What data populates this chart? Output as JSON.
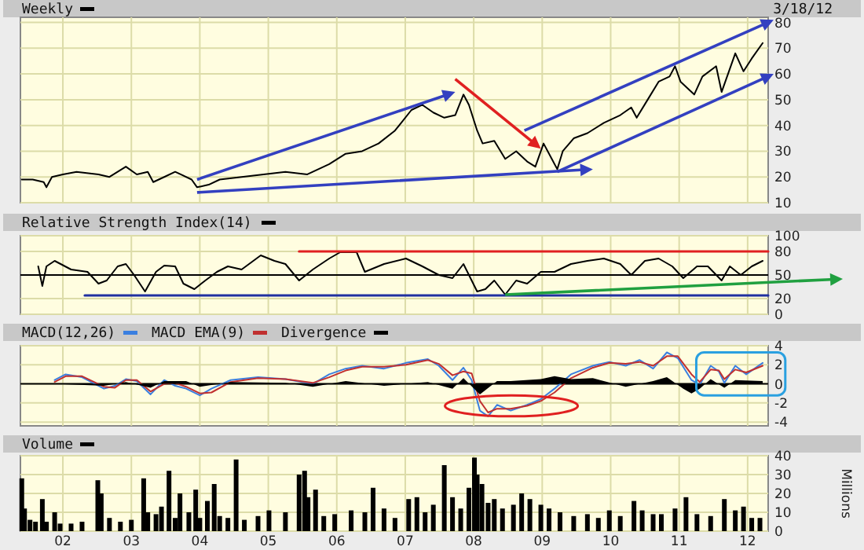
{
  "chart_data": [
    {
      "type": "line",
      "legend": "top",
      "grid": true,
      "tick_labels": "y",
      "annotations": [
        "3/18/12"
      ],
      "xlim": [
        2001.38,
        2012.3
      ],
      "xticks": [
        {
          "value": 2002,
          "label": null
        },
        {
          "value": 2003,
          "label": null
        },
        {
          "value": 2004,
          "label": null
        },
        {
          "value": 2005,
          "label": null
        },
        {
          "value": 2006,
          "label": null
        },
        {
          "value": 2007,
          "label": null
        },
        {
          "value": 2008,
          "label": null
        },
        {
          "value": 2009,
          "label": null
        },
        {
          "value": 2010,
          "label": null
        },
        {
          "value": 2011,
          "label": null
        },
        {
          "value": 2012,
          "label": null
        }
      ],
      "ylim": [
        10,
        82
      ],
      "yticks": [
        10,
        20,
        30,
        40,
        50,
        60,
        70,
        80
      ],
      "series": [
        {
          "name": "Weekly",
          "color": "#000000",
          "x": [
            2001.4,
            2001.56,
            2001.72,
            2001.76,
            2001.84,
            2002.0,
            2002.2,
            2002.52,
            2002.68,
            2002.92,
            2003.08,
            2003.24,
            2003.32,
            2003.48,
            2003.64,
            2003.72,
            2003.88,
            2003.96,
            2004.13,
            2004.29,
            2004.61,
            2004.93,
            2005.25,
            2005.57,
            2005.89,
            2006.13,
            2006.37,
            2006.61,
            2006.85,
            2007.09,
            2007.25,
            2007.41,
            2007.57,
            2007.73,
            2007.85,
            2007.93,
            2008.05,
            2008.13,
            2008.3,
            2008.46,
            2008.62,
            2008.78,
            2008.9,
            2009.02,
            2009.14,
            2009.22,
            2009.3,
            2009.46,
            2009.66,
            2009.9,
            2010.14,
            2010.3,
            2010.38,
            2010.54,
            2010.7,
            2010.86,
            2010.94,
            2011.02,
            2011.22,
            2011.34,
            2011.54,
            2011.62,
            2011.74,
            2011.82,
            2011.94,
            2012.06,
            2012.22
          ],
          "values": [
            19,
            19,
            18,
            16,
            20,
            21,
            22,
            21,
            20,
            24,
            21,
            22,
            18,
            20,
            22,
            21,
            19,
            16,
            17,
            19,
            20,
            21,
            22,
            21,
            25,
            29,
            30,
            33,
            38,
            46,
            48,
            45,
            43,
            44,
            52,
            48,
            38,
            33,
            34,
            27,
            30,
            26,
            24,
            33,
            27,
            23,
            30,
            35,
            37,
            41,
            44,
            47,
            43,
            50,
            57,
            59,
            63,
            57,
            52,
            59,
            63,
            53,
            62,
            68,
            61,
            66,
            72
          ]
        }
      ]
    },
    {
      "type": "line",
      "legend": "top",
      "grid": true,
      "tick_labels": "y",
      "xlim": [
        2001.38,
        2012.3
      ],
      "xticks": [
        {
          "value": 2002,
          "label": null
        },
        {
          "value": 2003,
          "label": null
        },
        {
          "value": 2004,
          "label": null
        },
        {
          "value": 2005,
          "label": null
        },
        {
          "value": 2006,
          "label": null
        },
        {
          "value": 2007,
          "label": null
        },
        {
          "value": 2008,
          "label": null
        },
        {
          "value": 2009,
          "label": null
        },
        {
          "value": 2010,
          "label": null
        },
        {
          "value": 2011,
          "label": null
        },
        {
          "value": 2012,
          "label": null
        }
      ],
      "ylim": [
        0,
        100
      ],
      "yticks": [
        0,
        20,
        50,
        80,
        100
      ],
      "ref_lines": [
        {
          "axis": "y",
          "value": 50,
          "color": "#000000"
        }
      ],
      "series": [
        {
          "name": "Relative Strength Index(14)",
          "color": "#000000",
          "x": [
            2001.64,
            2001.7,
            2001.76,
            2001.88,
            2002.12,
            2002.36,
            2002.52,
            2002.64,
            2002.8,
            2002.92,
            2003.04,
            2003.2,
            2003.36,
            2003.48,
            2003.64,
            2003.76,
            2003.92,
            2004.08,
            2004.25,
            2004.41,
            2004.61,
            2004.89,
            2005.09,
            2005.25,
            2005.45,
            2005.65,
            2005.89,
            2006.05,
            2006.29,
            2006.41,
            2006.69,
            2007.01,
            2007.25,
            2007.49,
            2007.69,
            2007.85,
            2008.05,
            2008.17,
            2008.3,
            2008.46,
            2008.62,
            2008.78,
            2008.98,
            2009.18,
            2009.42,
            2009.66,
            2009.9,
            2010.14,
            2010.3,
            2010.5,
            2010.7,
            2010.9,
            2011.06,
            2011.26,
            2011.42,
            2011.62,
            2011.74,
            2011.9,
            2012.06,
            2012.22
          ],
          "values": [
            61,
            36,
            61,
            68,
            57,
            54,
            39,
            43,
            61,
            64,
            50,
            29,
            54,
            62,
            61,
            39,
            32,
            43,
            54,
            61,
            57,
            75,
            68,
            64,
            43,
            57,
            71,
            79,
            79,
            54,
            64,
            71,
            61,
            50,
            46,
            64,
            29,
            32,
            43,
            25,
            43,
            39,
            54,
            54,
            64,
            68,
            71,
            64,
            50,
            68,
            71,
            61,
            46,
            61,
            61,
            43,
            61,
            50,
            61,
            68
          ]
        },
        {
          "color": "#e02020",
          "x": [
            2005.45,
            2012.3
          ],
          "values": [
            80,
            80
          ]
        },
        {
          "color": "#2030a0",
          "x": [
            2002.32,
            2012.3
          ],
          "values": [
            24,
            24
          ]
        }
      ]
    },
    {
      "type": "line",
      "legend": "top",
      "grid": true,
      "tick_labels": "y",
      "xlim": [
        2001.38,
        2012.3
      ],
      "xticks": [
        {
          "value": 2002,
          "label": null
        },
        {
          "value": 2003,
          "label": null
        },
        {
          "value": 2004,
          "label": null
        },
        {
          "value": 2005,
          "label": null
        },
        {
          "value": 2006,
          "label": null
        },
        {
          "value": 2007,
          "label": null
        },
        {
          "value": 2008,
          "label": null
        },
        {
          "value": 2009,
          "label": null
        },
        {
          "value": 2010,
          "label": null
        },
        {
          "value": 2011,
          "label": null
        },
        {
          "value": 2012,
          "label": null
        }
      ],
      "ylim": [
        -4.4,
        4
      ],
      "yticks": [
        -4,
        -2,
        0,
        2,
        4
      ],
      "ref_lines": [
        {
          "axis": "y",
          "value": 0,
          "color": "#000000"
        }
      ],
      "series": [
        {
          "name": "MACD(12,26)",
          "color": "#3a7fe0",
          "x": [
            2001.88,
            2002.04,
            2002.28,
            2002.6,
            2002.76,
            2002.92,
            2003.08,
            2003.28,
            2003.48,
            2003.64,
            2003.8,
            2004.0,
            2004.17,
            2004.45,
            2004.85,
            2005.25,
            2005.65,
            2005.89,
            2006.13,
            2006.37,
            2006.69,
            2007.01,
            2007.33,
            2007.49,
            2007.69,
            2007.85,
            2007.97,
            2008.09,
            2008.21,
            2008.34,
            2008.54,
            2008.78,
            2008.98,
            2009.18,
            2009.42,
            2009.74,
            2009.98,
            2010.22,
            2010.42,
            2010.62,
            2010.82,
            2010.98,
            2011.18,
            2011.3,
            2011.46,
            2011.58,
            2011.66,
            2011.82,
            2011.98,
            2012.22
          ],
          "values": [
            0.4,
            1,
            0.7,
            -0.5,
            -0.2,
            0.5,
            0.3,
            -1.1,
            0.4,
            -0.2,
            -0.5,
            -1.2,
            -0.5,
            0.4,
            0.7,
            0.5,
            0,
            1,
            1.6,
            1.9,
            1.6,
            2.2,
            2.6,
            1.9,
            0.4,
            1.7,
            0.4,
            -2.8,
            -3.4,
            -2.2,
            -2.8,
            -2.2,
            -1.6,
            -0.5,
            1,
            1.9,
            2.3,
            1.9,
            2.5,
            1.6,
            3.3,
            2.7,
            0.4,
            -0.1,
            1.9,
            1.3,
            0.1,
            1.9,
            1,
            2.2
          ]
        },
        {
          "name": "MACD EMA(9)",
          "color": "#c03030",
          "x": [
            2001.88,
            2002.04,
            2002.28,
            2002.6,
            2002.76,
            2002.92,
            2003.08,
            2003.28,
            2003.48,
            2003.64,
            2003.8,
            2004.0,
            2004.17,
            2004.45,
            2004.85,
            2005.25,
            2005.65,
            2005.89,
            2006.13,
            2006.37,
            2006.69,
            2007.01,
            2007.33,
            2007.49,
            2007.69,
            2007.85,
            2007.97,
            2008.09,
            2008.21,
            2008.34,
            2008.54,
            2008.78,
            2008.98,
            2009.18,
            2009.42,
            2009.74,
            2009.98,
            2010.22,
            2010.42,
            2010.62,
            2010.82,
            2010.98,
            2011.18,
            2011.3,
            2011.46,
            2011.58,
            2011.66,
            2011.82,
            2011.98,
            2012.22
          ],
          "values": [
            0.2,
            0.8,
            0.8,
            -0.3,
            -0.4,
            0.4,
            0.4,
            -0.8,
            0,
            0.1,
            -0.3,
            -1,
            -0.9,
            0.2,
            0.6,
            0.5,
            0.1,
            0.7,
            1.4,
            1.8,
            1.8,
            2,
            2.5,
            2.1,
            0.9,
            1.3,
            1.1,
            -1.8,
            -3,
            -2.6,
            -2.6,
            -2.3,
            -1.8,
            -0.9,
            0.6,
            1.7,
            2.2,
            2.1,
            2.3,
            1.9,
            2.9,
            2.9,
            1,
            0.2,
            1.5,
            1.4,
            0.5,
            1.5,
            1.2,
            1.9
          ]
        },
        {
          "name": "Divergence",
          "type": "area",
          "color": "#000000",
          "x": [
            2001.88,
            2002.6,
            2002.92,
            2003.28,
            2003.48,
            2003.8,
            2004.0,
            2004.45,
            2005.25,
            2005.65,
            2006.13,
            2006.69,
            2007.33,
            2007.69,
            2007.85,
            2008.09,
            2008.34,
            2008.54,
            2008.98,
            2009.18,
            2009.42,
            2009.74,
            2010.22,
            2010.62,
            2010.82,
            2011.06,
            2011.18,
            2011.3,
            2011.46,
            2011.66,
            2011.82,
            2012.22
          ],
          "values": [
            0,
            -0.2,
            0.2,
            -0.4,
            0.3,
            0.3,
            -0.3,
            0.2,
            0.1,
            -0.3,
            0.3,
            -0.2,
            0.2,
            -0.5,
            0.6,
            -1.1,
            0.3,
            0.3,
            0.5,
            0.8,
            0.5,
            0.6,
            -0.3,
            0.3,
            0.7,
            -0.5,
            -1,
            -0.5,
            0.5,
            -0.4,
            0.4,
            0.3
          ]
        }
      ]
    },
    {
      "type": "bar",
      "legend": "top",
      "grid": true,
      "ylabel": "Millions",
      "xlim": [
        2001.38,
        2012.3
      ],
      "xticks": [
        {
          "value": 2002,
          "label": "02"
        },
        {
          "value": 2003,
          "label": "03"
        },
        {
          "value": 2004,
          "label": "04"
        },
        {
          "value": 2005,
          "label": "05"
        },
        {
          "value": 2006,
          "label": "06"
        },
        {
          "value": 2007,
          "label": "07"
        },
        {
          "value": 2008,
          "label": "08"
        },
        {
          "value": 2009,
          "label": "09"
        },
        {
          "value": 2010,
          "label": "10"
        },
        {
          "value": 2011,
          "label": "11"
        },
        {
          "value": 2012,
          "label": "12"
        }
      ],
      "ylim": [
        0,
        40
      ],
      "yticks": [
        0,
        10,
        20,
        30,
        40
      ],
      "series": [
        {
          "name": "Volume",
          "color": "#000000",
          "x": [
            2001.4,
            2001.44,
            2001.52,
            2001.6,
            2001.7,
            2001.76,
            2001.88,
            2001.96,
            2002.12,
            2002.28,
            2002.51,
            2002.56,
            2002.68,
            2002.84,
            2003.0,
            2003.18,
            2003.24,
            2003.36,
            2003.44,
            2003.55,
            2003.64,
            2003.71,
            2003.84,
            2003.94,
            2004.0,
            2004.11,
            2004.21,
            2004.29,
            2004.41,
            2004.53,
            2004.65,
            2004.85,
            2005.01,
            2005.25,
            2005.45,
            2005.53,
            2005.58,
            2005.69,
            2005.81,
            2005.97,
            2006.21,
            2006.41,
            2006.53,
            2006.69,
            2006.85,
            2007.05,
            2007.17,
            2007.29,
            2007.41,
            2007.57,
            2007.69,
            2007.81,
            2007.93,
            2008.01,
            2008.05,
            2008.12,
            2008.21,
            2008.3,
            2008.42,
            2008.58,
            2008.7,
            2008.82,
            2008.98,
            2009.1,
            2009.26,
            2009.46,
            2009.66,
            2009.82,
            2009.98,
            2010.14,
            2010.34,
            2010.46,
            2010.62,
            2010.74,
            2010.94,
            2011.1,
            2011.26,
            2011.46,
            2011.66,
            2011.82,
            2011.94,
            2012.06,
            2012.18
          ],
          "values": [
            28,
            12,
            6,
            5,
            17,
            5,
            10,
            4,
            4,
            5,
            27,
            20,
            7,
            5,
            6,
            28,
            10,
            9,
            13,
            32,
            7,
            20,
            10,
            22,
            7,
            16,
            25,
            8,
            7,
            38,
            6,
            8,
            11,
            10,
            30,
            32,
            18,
            22,
            8,
            9,
            11,
            10,
            23,
            12,
            7,
            17,
            18,
            10,
            14,
            35,
            18,
            12,
            23,
            39,
            30,
            25,
            15,
            17,
            12,
            14,
            20,
            17,
            14,
            12,
            10,
            8,
            9,
            7,
            11,
            8,
            16,
            11,
            9,
            9,
            12,
            18,
            9,
            8,
            17,
            11,
            13,
            7,
            7
          ]
        }
      ]
    }
  ]
}
